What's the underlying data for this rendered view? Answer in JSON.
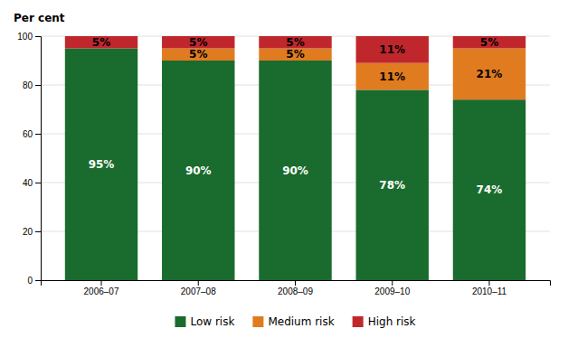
{
  "chart_data": {
    "type": "bar",
    "stacked": true,
    "ylabel": "Per cent",
    "categories": [
      "2006–07",
      "2007–08",
      "2008–09",
      "2009–10",
      "2010–11"
    ],
    "series": [
      {
        "name": "Low risk",
        "color": "#1a6b2e",
        "values": [
          95,
          90,
          90,
          78,
          74
        ],
        "value_labels": [
          "95%",
          "90%",
          "90%",
          "78%",
          "74%"
        ]
      },
      {
        "name": "Medium risk",
        "color": "#e07b20",
        "values": [
          0,
          5,
          5,
          11,
          21
        ],
        "value_labels": [
          null,
          "5%",
          "5%",
          "11%",
          "21%"
        ]
      },
      {
        "name": "High risk",
        "color": "#c0272d",
        "values": [
          5,
          5,
          5,
          11,
          5
        ],
        "value_labels": [
          "5%",
          "5%",
          "5%",
          "11%",
          "5%"
        ]
      }
    ],
    "ylim": [
      0,
      100
    ],
    "yticks": [
      0,
      20,
      40,
      60,
      80,
      100
    ],
    "grid": true,
    "data_labels": true,
    "legend": "bottom"
  }
}
